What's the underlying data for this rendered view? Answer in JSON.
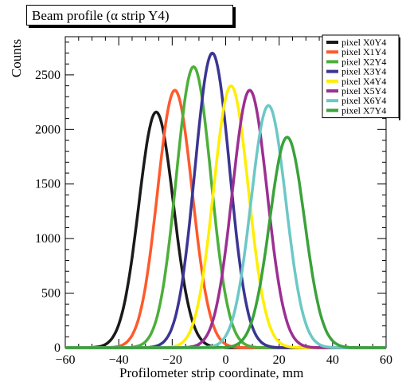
{
  "chart_data": {
    "type": "line",
    "title": "Beam profile (α strip Y4)",
    "xlabel": "Profilometer strip coordinate, mm",
    "ylabel": "Counts",
    "xlim": [
      -60,
      60
    ],
    "ylim": [
      0,
      2850
    ],
    "x_ticks": [
      -60,
      -40,
      -20,
      0,
      20,
      40,
      60
    ],
    "y_ticks": [
      0,
      500,
      1000,
      1500,
      2000,
      2500
    ],
    "grid": false,
    "legend_position": "top-right",
    "series": [
      {
        "name": "pixel X0Y4",
        "color": "#1a1a1a",
        "mean": -26,
        "peak": 2160,
        "sigma": 6.5
      },
      {
        "name": "pixel X1Y4",
        "color": "#ff5a2c",
        "mean": -19,
        "peak": 2360,
        "sigma": 6.5
      },
      {
        "name": "pixel X2Y4",
        "color": "#4caf3a",
        "mean": -12,
        "peak": 2575,
        "sigma": 6.5
      },
      {
        "name": "pixel X3Y4",
        "color": "#3b3593",
        "mean": -5,
        "peak": 2700,
        "sigma": 6.5
      },
      {
        "name": "pixel X4Y4",
        "color": "#ffee00",
        "mean": 2,
        "peak": 2400,
        "sigma": 6.5
      },
      {
        "name": "pixel X5Y4",
        "color": "#9c2f92",
        "mean": 9,
        "peak": 2360,
        "sigma": 6.5
      },
      {
        "name": "pixel X6Y4",
        "color": "#6cc8c6",
        "mean": 16,
        "peak": 2220,
        "sigma": 6.5
      },
      {
        "name": "pixel X7Y4",
        "color": "#3aa23a",
        "mean": 23,
        "peak": 1930,
        "sigma": 6.5
      }
    ]
  }
}
